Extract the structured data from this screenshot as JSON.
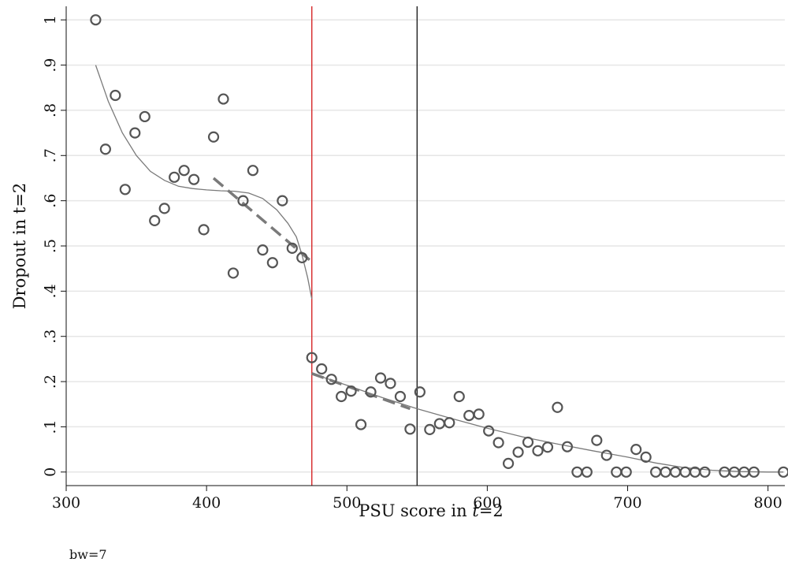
{
  "chart_data": {
    "type": "scatter",
    "xlabel_prefix": "PSU score in ",
    "xlabel_italic": "t",
    "xlabel_suffix": "=2",
    "ylabel": "Dropout in t=2",
    "xlim": [
      300,
      812
    ],
    "ylim": [
      -0.03,
      1.03
    ],
    "x_ticks": [
      300,
      400,
      500,
      600,
      700,
      800
    ],
    "y_ticks": [
      0,
      0.1,
      0.2,
      0.3,
      0.4,
      0.5,
      0.6,
      0.7,
      0.8,
      0.9,
      1
    ],
    "y_tick_labels": [
      "0",
      ".1",
      ".2",
      ".3",
      ".4",
      ".5",
      ".6",
      ".7",
      ".8",
      ".9",
      "1"
    ],
    "grid": "horizontal",
    "vertical_lines": [
      {
        "x": 475,
        "color": "#d62728"
      },
      {
        "x": 550,
        "color": "#222222"
      }
    ],
    "series": [
      {
        "type": "scatter",
        "points": [
          [
            321,
            1.0
          ],
          [
            328,
            0.714
          ],
          [
            335,
            0.833
          ],
          [
            342,
            0.625
          ],
          [
            349,
            0.75
          ],
          [
            356,
            0.786
          ],
          [
            363,
            0.556
          ],
          [
            370,
            0.583
          ],
          [
            377,
            0.652
          ],
          [
            384,
            0.667
          ],
          [
            391,
            0.647
          ],
          [
            398,
            0.536
          ],
          [
            405,
            0.741
          ],
          [
            412,
            0.825
          ],
          [
            419,
            0.44
          ],
          [
            426,
            0.6
          ],
          [
            433,
            0.667
          ],
          [
            440,
            0.491
          ],
          [
            447,
            0.463
          ],
          [
            454,
            0.6
          ],
          [
            461,
            0.495
          ],
          [
            468,
            0.474
          ],
          [
            475,
            0.253
          ],
          [
            482,
            0.228
          ],
          [
            489,
            0.205
          ],
          [
            496,
            0.167
          ],
          [
            503,
            0.179
          ],
          [
            510,
            0.105
          ],
          [
            517,
            0.177
          ],
          [
            524,
            0.208
          ],
          [
            531,
            0.196
          ],
          [
            538,
            0.167
          ],
          [
            545,
            0.095
          ],
          [
            552,
            0.177
          ],
          [
            559,
            0.094
          ],
          [
            566,
            0.107
          ],
          [
            573,
            0.109
          ],
          [
            580,
            0.167
          ],
          [
            587,
            0.125
          ],
          [
            594,
            0.128
          ],
          [
            601,
            0.091
          ],
          [
            608,
            0.065
          ],
          [
            615,
            0.019
          ],
          [
            622,
            0.044
          ],
          [
            629,
            0.066
          ],
          [
            636,
            0.047
          ],
          [
            643,
            0.055
          ],
          [
            650,
            0.143
          ],
          [
            657,
            0.056
          ],
          [
            664,
            0.0
          ],
          [
            671,
            0.0
          ],
          [
            678,
            0.07
          ],
          [
            685,
            0.037
          ],
          [
            692,
            0.0
          ],
          [
            699,
            0.0
          ],
          [
            706,
            0.05
          ],
          [
            713,
            0.033
          ],
          [
            720,
            0.0
          ],
          [
            727,
            0.0
          ],
          [
            734,
            0.0
          ],
          [
            741,
            0.0
          ],
          [
            748,
            0.0
          ],
          [
            755,
            0.0
          ],
          [
            769,
            0.0
          ],
          [
            776,
            0.0
          ],
          [
            783,
            0.0
          ],
          [
            790,
            0.0
          ],
          [
            811,
            0.0
          ]
        ]
      },
      {
        "type": "line",
        "style": "solid",
        "color": "#7a7a7a",
        "points": [
          [
            321,
            0.9
          ],
          [
            330,
            0.82
          ],
          [
            340,
            0.75
          ],
          [
            350,
            0.7
          ],
          [
            360,
            0.665
          ],
          [
            370,
            0.645
          ],
          [
            380,
            0.632
          ],
          [
            390,
            0.627
          ],
          [
            400,
            0.624
          ],
          [
            410,
            0.622
          ],
          [
            420,
            0.621
          ],
          [
            430,
            0.617
          ],
          [
            440,
            0.605
          ],
          [
            450,
            0.58
          ],
          [
            458,
            0.55
          ],
          [
            464,
            0.52
          ],
          [
            468,
            0.48
          ],
          [
            472,
            0.43
          ],
          [
            475,
            0.383
          ]
        ]
      },
      {
        "type": "line",
        "style": "solid",
        "color": "#7a7a7a",
        "points": [
          [
            475,
            0.218
          ],
          [
            500,
            0.192
          ],
          [
            525,
            0.165
          ],
          [
            550,
            0.14
          ],
          [
            575,
            0.118
          ],
          [
            600,
            0.097
          ],
          [
            625,
            0.078
          ],
          [
            650,
            0.062
          ],
          [
            675,
            0.047
          ],
          [
            700,
            0.033
          ],
          [
            720,
            0.02
          ],
          [
            740,
            0.01
          ],
          [
            760,
            0.004
          ],
          [
            780,
            0.001
          ],
          [
            800,
            0.0
          ],
          [
            811,
            0.0
          ]
        ]
      },
      {
        "type": "line",
        "style": "dashed",
        "color": "#7a7a7a",
        "points": [
          [
            405,
            0.65
          ],
          [
            475,
            0.465
          ]
        ]
      },
      {
        "type": "line",
        "style": "dashed",
        "color": "#7a7a7a",
        "points": [
          [
            475,
            0.218
          ],
          [
            545,
            0.14
          ]
        ]
      }
    ]
  },
  "footnote": "bw=7"
}
